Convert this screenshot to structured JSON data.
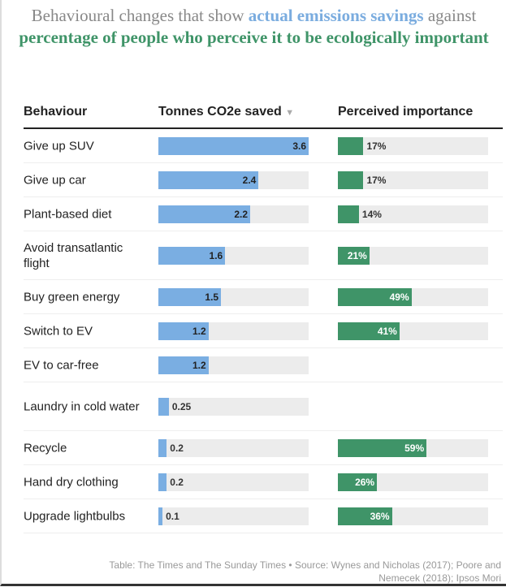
{
  "title": {
    "part1": "Behavioural changes that show ",
    "part2": "actual emissions savings",
    "part3": " against ",
    "part4": "percentage of people who perceive it to be ecologically important"
  },
  "headers": {
    "behaviour": "Behaviour",
    "saved": "Tonnes CO2e saved",
    "sort_icon": "▼",
    "importance": "Perceived importance"
  },
  "colors": {
    "saved": "#7aaee2",
    "importance": "#3f9468",
    "track": "#ececec"
  },
  "chart_data": {
    "type": "table",
    "columns": [
      "Behaviour",
      "Tonnes CO2e saved",
      "Perceived importance"
    ],
    "saved_range": [
      0,
      3.6
    ],
    "importance_range": [
      0,
      100
    ],
    "rows": [
      {
        "behaviour": "Give up SUV",
        "saved": 3.6,
        "saved_label": "3.6",
        "importance": 17,
        "importance_label": "17%"
      },
      {
        "behaviour": "Give up car",
        "saved": 2.4,
        "saved_label": "2.4",
        "importance": 17,
        "importance_label": "17%"
      },
      {
        "behaviour": "Plant-based diet",
        "saved": 2.2,
        "saved_label": "2.2",
        "importance": 14,
        "importance_label": "14%"
      },
      {
        "behaviour": "Avoid transatlantic flight",
        "saved": 1.6,
        "saved_label": "1.6",
        "importance": 21,
        "importance_label": "21%"
      },
      {
        "behaviour": "Buy green energy",
        "saved": 1.5,
        "saved_label": "1.5",
        "importance": 49,
        "importance_label": "49%"
      },
      {
        "behaviour": "Switch to EV",
        "saved": 1.2,
        "saved_label": "1.2",
        "importance": 41,
        "importance_label": "41%"
      },
      {
        "behaviour": "EV to car-free",
        "saved": 1.2,
        "saved_label": "1.2",
        "importance": null,
        "importance_label": null
      },
      {
        "behaviour": "Laundry in cold water",
        "saved": 0.25,
        "saved_label": "0.25",
        "importance": null,
        "importance_label": null
      },
      {
        "behaviour": "Recycle",
        "saved": 0.2,
        "saved_label": "0.2",
        "importance": 59,
        "importance_label": "59%"
      },
      {
        "behaviour": "Hand dry clothing",
        "saved": 0.2,
        "saved_label": "0.2",
        "importance": 26,
        "importance_label": "26%"
      },
      {
        "behaviour": "Upgrade lightbulbs",
        "saved": 0.1,
        "saved_label": "0.1",
        "importance": 36,
        "importance_label": "36%"
      }
    ]
  },
  "footer": "Table: The Times and The Sunday Times • Source: Wynes and Nicholas (2017); Poore and Nemecek (2018); Ipsos Mori"
}
